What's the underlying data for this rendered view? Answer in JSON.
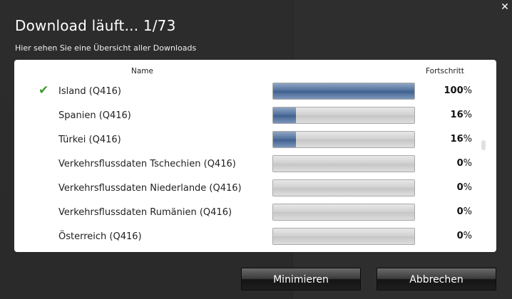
{
  "dialog": {
    "title": "Download läuft... 1/73",
    "subtitle": "Hier sehen Sie eine Übersicht aller Downloads",
    "close_icon": "close-icon"
  },
  "table": {
    "col_name": "Name",
    "col_progress": "Fortschritt",
    "rows": [
      {
        "name": "Island (Q416)",
        "progress": 100,
        "pct_num": "100",
        "done": true
      },
      {
        "name": "Spanien (Q416)",
        "progress": 16,
        "pct_num": "16",
        "done": false
      },
      {
        "name": "Türkei (Q416)",
        "progress": 16,
        "pct_num": "16",
        "done": false
      },
      {
        "name": "Verkehrsflussdaten Tschechien (Q416)",
        "progress": 0,
        "pct_num": "0",
        "done": false
      },
      {
        "name": "Verkehrsflussdaten Niederlande (Q416)",
        "progress": 0,
        "pct_num": "0",
        "done": false
      },
      {
        "name": "Verkehrsflussdaten Rumänien (Q416)",
        "progress": 0,
        "pct_num": "0",
        "done": false
      },
      {
        "name": "Österreich (Q416)",
        "progress": 0,
        "pct_num": "0",
        "done": false
      }
    ],
    "pct_sign": "%"
  },
  "buttons": {
    "minimize": "Minimieren",
    "cancel": "Abbrechen"
  },
  "colors": {
    "check": "#3a9a2a",
    "progress_fill": "#4e6e9a",
    "background": "#2b2b2b"
  }
}
